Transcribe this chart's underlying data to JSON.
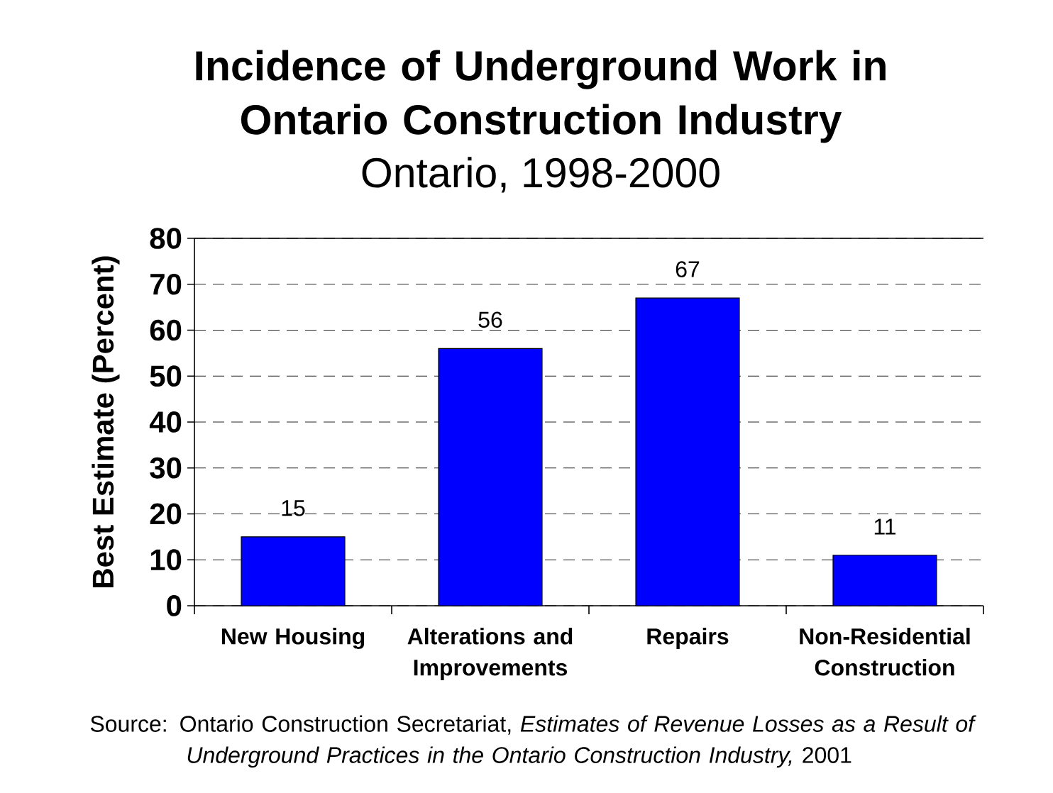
{
  "chart_data": {
    "type": "bar",
    "title": "Incidence of Underground Work in Ontario Construction Industry",
    "subtitle": "Ontario, 1998-2000",
    "ylabel": "Best Estimate (Percent)",
    "categories": [
      "New Housing",
      "Alterations and Improvements",
      "Repairs",
      "Non-Residential Construction"
    ],
    "values": [
      15,
      56,
      67,
      11
    ],
    "color": "#0000ff",
    "ylim": [
      0,
      80
    ],
    "yticks": [
      0,
      10,
      20,
      30,
      40,
      50,
      60,
      70,
      80
    ],
    "grid": "y",
    "data_labels": true,
    "annotations": [
      "Source: Ontario Construction Secretariat, *Estimates of Revenue Losses as a Result of Underground Practices in the Ontario Construction Industry,* 2001"
    ]
  }
}
